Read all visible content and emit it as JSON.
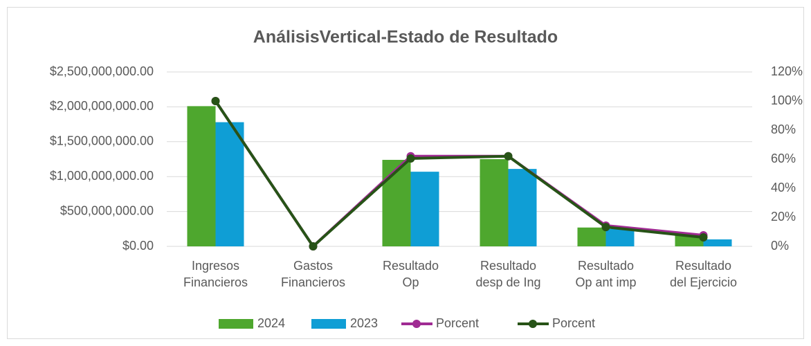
{
  "chart_data": {
    "type": "bar",
    "title": "AnálisisVertical-Estado de Resultado",
    "categories": [
      "Ingresos\nFinancieros",
      "Gastos\nFinancieros",
      "Resultado\nOp",
      "Resultado\ndesp de Ing",
      "Resultado\nOp ant imp",
      "Resultado\ndel Ejercicio"
    ],
    "series": [
      {
        "name": "2024",
        "type": "bar",
        "color": "#4ea72e",
        "values": [
          2010000000,
          0,
          1240000000,
          1250000000,
          270000000,
          160000000
        ]
      },
      {
        "name": "2023",
        "type": "bar",
        "color": "#0f9ed5",
        "values": [
          1780000000,
          0,
          1070000000,
          1110000000,
          250000000,
          100000000
        ]
      },
      {
        "name": "Porcent",
        "type": "line",
        "axis": "y2",
        "color": "#a02b93",
        "values": [
          100,
          0,
          62,
          62,
          14.3,
          7.6
        ]
      },
      {
        "name": "Porcent",
        "type": "line",
        "axis": "y2",
        "color": "#275317",
        "values": [
          100,
          0,
          60.5,
          62,
          13.3,
          6.2
        ]
      }
    ],
    "ylim": [
      0,
      2500000000
    ],
    "yticks": [
      {
        "value": 0,
        "label": "$0.00"
      },
      {
        "value": 500000000,
        "label": "$500,000,000.00"
      },
      {
        "value": 1000000000,
        "label": "$1,000,000,000.00"
      },
      {
        "value": 1500000000,
        "label": "$1,500,000,000.00"
      },
      {
        "value": 2000000000,
        "label": "$2,000,000,000.00"
      },
      {
        "value": 2500000000,
        "label": "$2,500,000,000.00"
      }
    ],
    "y2lim": [
      0,
      120
    ],
    "y2ticks": [
      {
        "value": 0,
        "label": "0%"
      },
      {
        "value": 20,
        "label": "20%"
      },
      {
        "value": 40,
        "label": "40%"
      },
      {
        "value": 60,
        "label": "60%"
      },
      {
        "value": 80,
        "label": "80%"
      },
      {
        "value": 100,
        "label": "100%"
      },
      {
        "value": 120,
        "label": "120%"
      }
    ],
    "grid": true,
    "legend": "bottom"
  }
}
